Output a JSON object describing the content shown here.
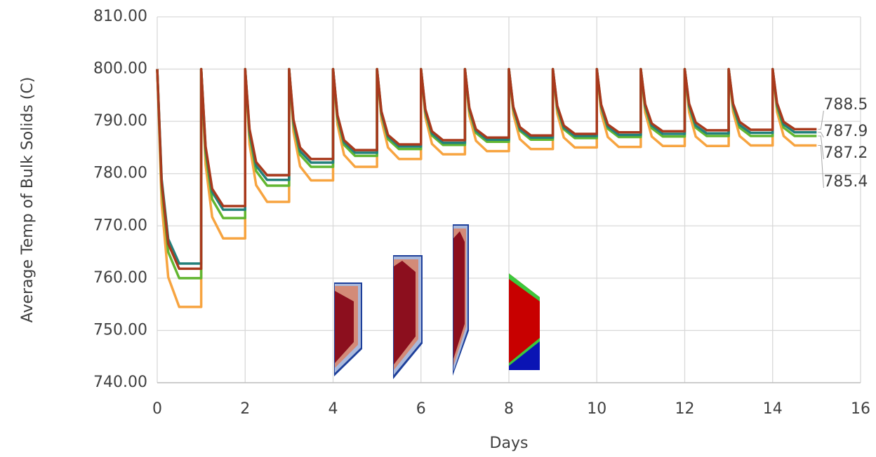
{
  "chart_data": {
    "type": "line",
    "ylabel": "Average Temp of Bulk Solids (C)",
    "xlabel": "Days",
    "x": [
      0,
      0.1,
      0.25,
      0.5,
      1,
      1,
      1.1,
      1.25,
      1.5,
      2,
      2,
      2.1,
      2.25,
      2.5,
      3,
      3,
      3.1,
      3.25,
      3.5,
      4,
      4,
      4.1,
      4.25,
      4.5,
      5,
      5,
      5.1,
      5.25,
      5.5,
      6,
      6,
      6.1,
      6.25,
      6.5,
      7,
      7,
      7.1,
      7.25,
      7.5,
      8,
      8,
      8.1,
      8.25,
      8.5,
      9,
      9,
      9.1,
      9.25,
      9.5,
      10,
      10,
      10.1,
      10.25,
      10.5,
      11,
      11,
      11.1,
      11.25,
      11.5,
      12,
      12,
      12.1,
      12.25,
      12.5,
      13,
      13,
      13.1,
      13.25,
      13.5,
      14,
      14,
      14.1,
      14.25,
      14.5,
      15
    ],
    "series": [
      {
        "color": "#a8391c",
        "values": [
          800,
          778.4,
          766.6,
          761.8,
          761.8,
          800,
          785.2,
          777.1,
          773.8,
          773.8,
          800,
          788.5,
          782.2,
          779.7,
          779.7,
          800,
          790.3,
          785.0,
          782.8,
          782.8,
          800,
          791.2,
          786.4,
          784.5,
          784.5,
          800,
          791.9,
          787.4,
          785.6,
          785.6,
          800,
          792.3,
          788.1,
          786.4,
          786.4,
          800,
          792.6,
          788.5,
          786.9,
          786.9,
          800,
          792.8,
          788.9,
          787.3,
          787.3,
          800,
          793.0,
          789.2,
          787.6,
          787.6,
          800,
          793.2,
          789.4,
          787.9,
          787.9,
          800,
          793.3,
          789.6,
          788.1,
          788.1,
          800,
          793.4,
          789.8,
          788.3,
          788.3,
          800,
          793.4,
          789.9,
          788.4,
          788.4,
          800,
          793.5,
          789.9,
          788.5,
          788.5
        ]
      },
      {
        "color": "#23807a",
        "values": [
          800,
          779.0,
          767.5,
          762.8,
          762.8,
          800,
          784.8,
          776.5,
          773.1,
          773.1,
          800,
          788.0,
          781.5,
          778.8,
          778.8,
          800,
          789.9,
          784.3,
          782.1,
          782.1,
          800,
          791.0,
          786.0,
          784.0,
          784.0,
          800,
          791.6,
          787.1,
          785.2,
          785.2,
          800,
          792.0,
          787.7,
          785.9,
          785.9,
          800,
          792.4,
          788.2,
          786.5,
          786.5,
          800,
          792.6,
          788.5,
          786.9,
          786.9,
          800,
          792.8,
          788.8,
          787.2,
          787.2,
          800,
          792.9,
          789.0,
          787.4,
          787.4,
          800,
          793.0,
          789.2,
          787.6,
          787.6,
          800,
          793.1,
          789.2,
          787.7,
          787.7,
          800,
          793.1,
          789.3,
          787.8,
          787.8,
          800,
          793.2,
          789.4,
          787.9,
          787.9
        ]
      },
      {
        "color": "#62b631",
        "values": [
          800,
          777.4,
          765.0,
          760.0,
          760.0,
          800,
          783.9,
          775.1,
          771.5,
          771.5,
          800,
          787.4,
          780.5,
          777.7,
          777.7,
          800,
          789.4,
          783.6,
          781.3,
          781.3,
          800,
          790.6,
          785.5,
          783.4,
          783.4,
          800,
          791.4,
          786.6,
          784.7,
          784.7,
          800,
          791.8,
          787.3,
          785.5,
          785.5,
          800,
          792.1,
          787.8,
          786.1,
          786.1,
          800,
          792.4,
          788.2,
          786.5,
          786.5,
          800,
          792.5,
          788.5,
          786.8,
          786.8,
          800,
          792.7,
          788.6,
          787.0,
          787.0,
          800,
          792.7,
          788.7,
          787.1,
          787.1,
          800,
          792.8,
          788.8,
          787.2,
          787.2,
          800,
          792.8,
          788.8,
          787.2,
          787.2,
          800,
          792.8,
          788.8,
          787.2,
          787.2
        ]
      },
      {
        "color": "#f7a440",
        "values": [
          800,
          774.3,
          760.2,
          754.5,
          754.5,
          800,
          781.7,
          771.7,
          767.6,
          767.6,
          800,
          785.6,
          777.8,
          774.6,
          774.6,
          800,
          788.0,
          781.4,
          778.7,
          778.7,
          800,
          789.4,
          783.6,
          781.3,
          781.3,
          800,
          790.3,
          785.0,
          782.8,
          782.8,
          800,
          790.8,
          785.7,
          783.7,
          783.7,
          800,
          791.1,
          786.3,
          784.3,
          784.3,
          800,
          791.4,
          786.6,
          784.7,
          784.7,
          800,
          791.5,
          786.9,
          785.0,
          785.0,
          800,
          791.6,
          787.0,
          785.1,
          785.1,
          800,
          791.7,
          787.1,
          785.3,
          785.3,
          800,
          791.7,
          787.1,
          785.3,
          785.3,
          800,
          791.8,
          787.2,
          785.4,
          785.4,
          800,
          791.8,
          787.2,
          785.4,
          785.4
        ]
      }
    ],
    "xlim": [
      0,
      16
    ],
    "xticks": [
      0,
      2,
      4,
      6,
      8,
      10,
      12,
      14,
      16
    ],
    "ylim": [
      740,
      810
    ],
    "yticks": [
      {
        "value": 740,
        "label": "740.00"
      },
      {
        "value": 750,
        "label": "750.00"
      },
      {
        "value": 760,
        "label": "760.00"
      },
      {
        "value": 770,
        "label": "770.00"
      },
      {
        "value": 780,
        "label": "780.00"
      },
      {
        "value": 790,
        "label": "790.00"
      },
      {
        "value": 800,
        "label": "800.00"
      },
      {
        "value": 810,
        "label": "810.00"
      }
    ],
    "grid": true
  }
}
